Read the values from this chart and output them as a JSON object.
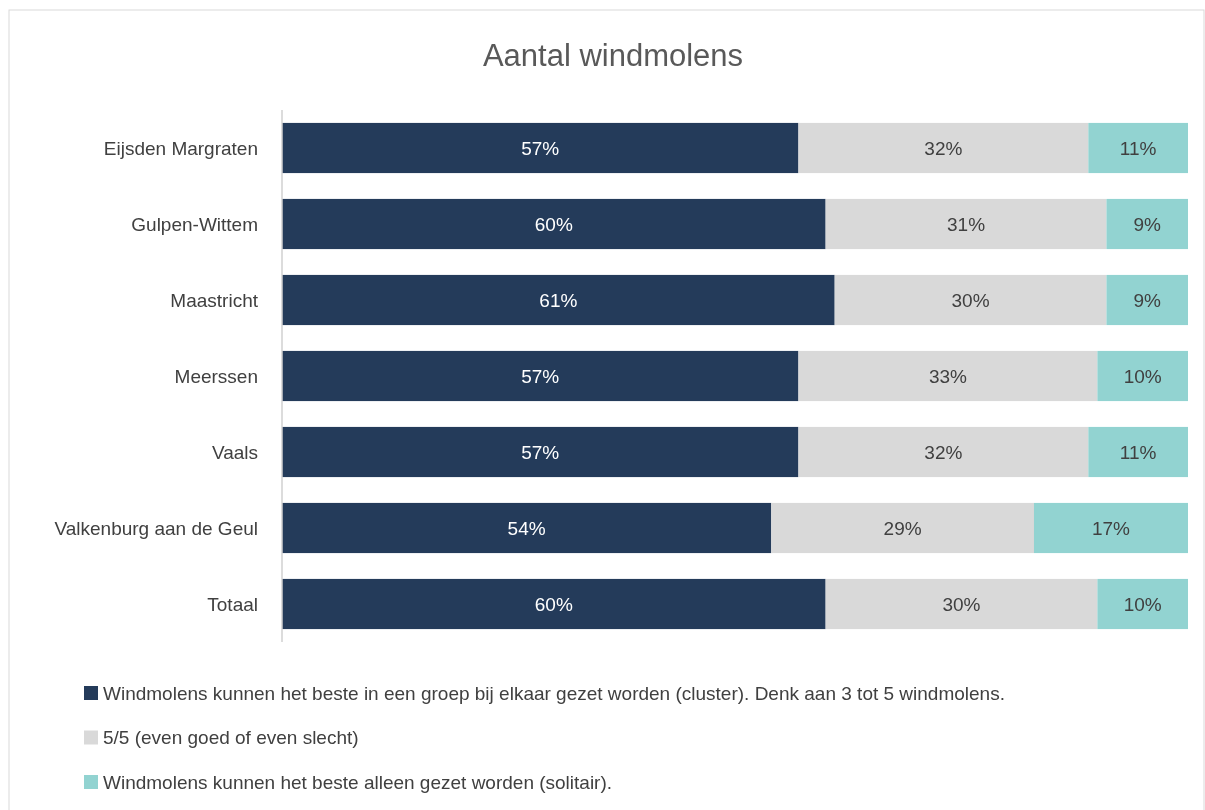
{
  "chart_data": {
    "type": "bar",
    "orientation": "horizontal",
    "stacked": true,
    "title": "Aantal windmolens",
    "categories": [
      "Eijsden Margraten",
      "Gulpen-Wittem",
      "Maastricht",
      "Meerssen",
      "Vaals",
      "Valkenburg aan de Geul",
      "Totaal"
    ],
    "series": [
      {
        "name": "Windmolens kunnen het beste in een groep bij elkaar gezet worden (cluster). Denk aan 3 tot 5 windmolens.",
        "color": "#243b5a",
        "values": [
          57,
          60,
          61,
          57,
          57,
          54,
          60
        ],
        "value_labels": [
          "57%",
          "60%",
          "61%",
          "57%",
          "57%",
          "54%",
          "60%"
        ]
      },
      {
        "name": "5/5 (even goed of even slecht)",
        "color": "#d9d9d9",
        "values": [
          32,
          31,
          30,
          33,
          32,
          29,
          30
        ],
        "value_labels": [
          "32%",
          "31%",
          "30%",
          "33%",
          "32%",
          "29%",
          "30%"
        ]
      },
      {
        "name": "Windmolens kunnen het beste alleen gezet worden (solitair).",
        "color": "#92d3d1",
        "values": [
          11,
          9,
          9,
          10,
          11,
          17,
          10
        ],
        "value_labels": [
          "11%",
          "9%",
          "9%",
          "10%",
          "11%",
          "17%",
          "10%"
        ]
      }
    ],
    "legend": "bottom"
  }
}
